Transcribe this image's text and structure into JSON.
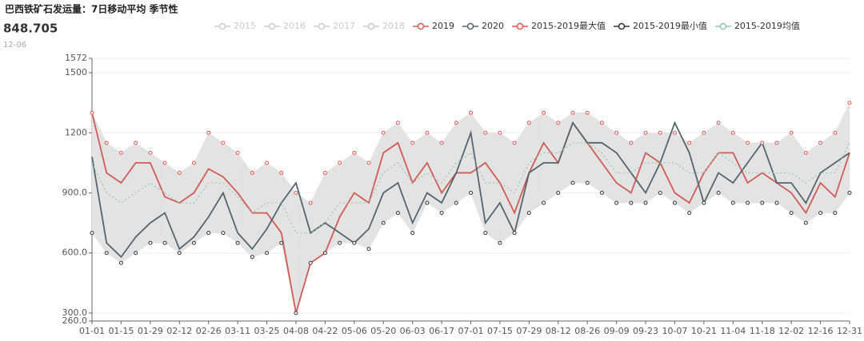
{
  "chart_data": {
    "type": "line",
    "title": "巴西铁矿石发运量：7日移动平均 季节性",
    "readout_value": "848.705",
    "readout_date": "12-06",
    "inactive_legend": [
      "2015",
      "2016",
      "2017",
      "2018"
    ],
    "categories": [
      "01-01",
      null,
      "01-15",
      null,
      "01-29",
      null,
      "02-12",
      null,
      "02-26",
      null,
      "03-11",
      null,
      "03-25",
      null,
      "04-08",
      null,
      "04-22",
      null,
      "05-06",
      null,
      "05-20",
      null,
      "06-03",
      null,
      "06-17",
      null,
      "07-01",
      null,
      "07-15",
      null,
      "07-29",
      null,
      "08-12",
      null,
      "08-26",
      null,
      "09-09",
      null,
      "09-23",
      null,
      "10-07",
      null,
      "10-21",
      null,
      "11-04",
      null,
      "11-18",
      null,
      "12-02",
      null,
      "12-16",
      null,
      "12-31"
    ],
    "ylim": [
      260,
      1572
    ],
    "yticks": [
      {
        "value": 260,
        "label": "260.0"
      },
      {
        "value": 300,
        "label": "300.0"
      },
      {
        "value": 600,
        "label": "600.0"
      },
      {
        "value": 900,
        "label": "900.0"
      },
      1200,
      1500,
      1572
    ],
    "grid": true,
    "series": [
      {
        "name": "2019",
        "color": "#d15b55",
        "style": "line",
        "values": [
          1300,
          1000,
          950,
          1050,
          1050,
          880,
          850,
          900,
          1020,
          980,
          900,
          800,
          800,
          700,
          300,
          550,
          600,
          780,
          900,
          850,
          1100,
          1150,
          950,
          1050,
          900,
          1000,
          1000,
          1050,
          950,
          800,
          1000,
          1150,
          1050,
          1250,
          1150,
          1050,
          950,
          900,
          1100,
          1050,
          900,
          850,
          1000,
          1100,
          1100,
          950,
          1000,
          950,
          900,
          800,
          950,
          880,
          1100
        ]
      },
      {
        "name": "2020",
        "color": "#546570",
        "style": "line",
        "values": [
          1080,
          650,
          580,
          680,
          750,
          800,
          620,
          680,
          780,
          900,
          700,
          620,
          720,
          850,
          950,
          700,
          750,
          700,
          650,
          720,
          900,
          950,
          750,
          900,
          850,
          1000,
          1200,
          750,
          850,
          700,
          1000,
          1050,
          1050,
          1250,
          1150,
          1150,
          1100,
          1000,
          900,
          1050,
          1250,
          1100,
          850,
          1000,
          950,
          1050,
          1150,
          950,
          950,
          849,
          1000,
          1050,
          1100
        ]
      },
      {
        "name": "2015-2019最大值",
        "color": "#e8544e",
        "style": "points",
        "values": [
          1300,
          1150,
          1100,
          1150,
          1100,
          1050,
          1000,
          1050,
          1200,
          1150,
          1100,
          1000,
          1050,
          1000,
          900,
          850,
          1000,
          1050,
          1100,
          1050,
          1200,
          1250,
          1150,
          1200,
          1150,
          1250,
          1300,
          1200,
          1200,
          1150,
          1250,
          1300,
          1250,
          1300,
          1300,
          1250,
          1200,
          1150,
          1200,
          1200,
          1200,
          1150,
          1200,
          1250,
          1200,
          1150,
          1150,
          1150,
          1200,
          1100,
          1150,
          1200,
          1350
        ]
      },
      {
        "name": "2015-2019最小值",
        "color": "#333333",
        "style": "points",
        "values": [
          700,
          600,
          550,
          600,
          650,
          650,
          600,
          650,
          700,
          700,
          650,
          580,
          600,
          650,
          300,
          550,
          600,
          650,
          650,
          620,
          750,
          800,
          700,
          850,
          800,
          850,
          900,
          700,
          650,
          700,
          800,
          850,
          900,
          950,
          950,
          900,
          850,
          850,
          850,
          900,
          850,
          800,
          850,
          900,
          850,
          850,
          850,
          850,
          800,
          750,
          800,
          800,
          900
        ]
      },
      {
        "name": "2015-2019均值",
        "color": "#91c7ae",
        "style": "dotted",
        "values": [
          1050,
          900,
          850,
          900,
          950,
          900,
          850,
          850,
          950,
          950,
          880,
          800,
          850,
          850,
          700,
          700,
          750,
          850,
          850,
          850,
          1000,
          1050,
          950,
          1000,
          950,
          1050,
          1100,
          950,
          950,
          900,
          1050,
          1100,
          1100,
          1150,
          1150,
          1100,
          1000,
          1000,
          1050,
          1050,
          1050,
          1000,
          1000,
          1100,
          1050,
          1000,
          1000,
          1000,
          1000,
          950,
          1000,
          1000,
          1150
        ]
      }
    ]
  }
}
